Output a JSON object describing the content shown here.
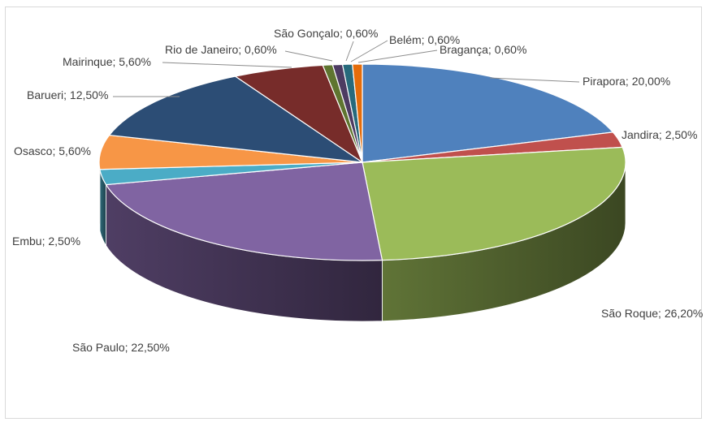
{
  "chart_data": {
    "type": "pie",
    "title": "",
    "style": "3d-exploded-none",
    "label_format": "{name}; {value}",
    "slices": [
      {
        "name": "Pirapora",
        "value": 20.0,
        "label": "Pirapora; 20,00%",
        "color": "#4F81BD"
      },
      {
        "name": "Jandira",
        "value": 2.5,
        "label": "Jandira; 2,50%",
        "color": "#C0504D"
      },
      {
        "name": "São Roque",
        "value": 26.2,
        "label": "São Roque; 26,20%",
        "color": "#9BBB59"
      },
      {
        "name": "São Paulo",
        "value": 22.5,
        "label": "São Paulo; 22,50%",
        "color": "#8064A2"
      },
      {
        "name": "Embu",
        "value": 2.5,
        "label": "Embu; 2,50%",
        "color": "#4BACC6"
      },
      {
        "name": "Osasco",
        "value": 5.6,
        "label": "Osasco; 5,60%",
        "color": "#F79646"
      },
      {
        "name": "Barueri",
        "value": 12.5,
        "label": "Barueri; 12,50%",
        "color": "#2C4D75"
      },
      {
        "name": "Mairinque",
        "value": 5.6,
        "label": "Mairinque; 5,60%",
        "color": "#772C2A"
      },
      {
        "name": "Rio de Janeiro",
        "value": 0.6,
        "label": "Rio de Janeiro; 0,60%",
        "color": "#5F7530"
      },
      {
        "name": "São Gonçalo",
        "value": 0.6,
        "label": "São Gonçalo; 0,60%",
        "color": "#4D3B62"
      },
      {
        "name": "Belém",
        "value": 0.6,
        "label": "Belém; 0,60%",
        "color": "#276A7C"
      },
      {
        "name": "Bragança",
        "value": 0.6,
        "label": "Bragança; 0,60%",
        "color": "#E46C0A"
      }
    ]
  }
}
